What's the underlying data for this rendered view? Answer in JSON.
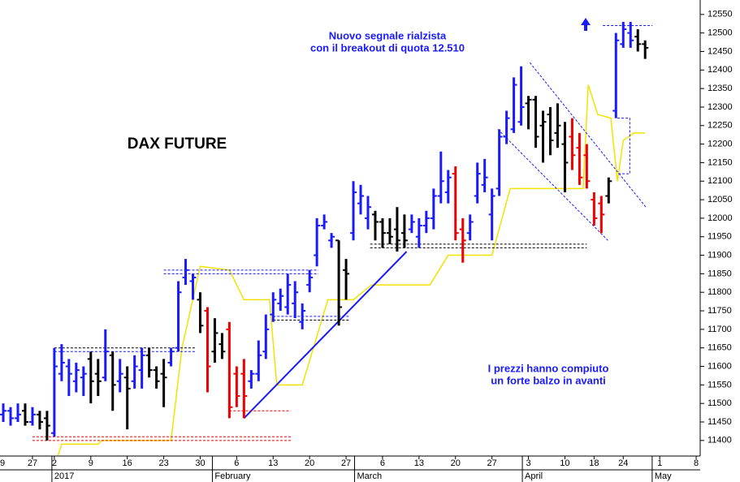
{
  "chart_data": {
    "type": "ohlc",
    "title": "DAX FUTURE",
    "annotations": [
      "Nuovo segnale rialzista",
      "con il breakout di quota 12.510",
      "I prezzi hanno compiuto",
      "un forte balzo in avanti"
    ],
    "xlim": [
      -0.45,
      95.55
    ],
    "ylim": [
      11358,
      12589
    ],
    "yticks": [
      11400,
      11450,
      11500,
      11550,
      11600,
      11650,
      11700,
      11750,
      11800,
      11850,
      11900,
      11950,
      12000,
      12050,
      12100,
      12150,
      12200,
      12250,
      12300,
      12350,
      12400,
      12450,
      12500,
      12550
    ],
    "xticks": [
      {
        "value": -0.5,
        "label": "9"
      },
      {
        "value": 4,
        "label": "27"
      },
      {
        "value": 7,
        "label": "2"
      },
      {
        "value": 12,
        "label": "9"
      },
      {
        "value": 17,
        "label": "16"
      },
      {
        "value": 22,
        "label": "23"
      },
      {
        "value": 27,
        "label": "30"
      },
      {
        "value": 32,
        "label": "6"
      },
      {
        "value": 37,
        "label": "13"
      },
      {
        "value": 42,
        "label": "20"
      },
      {
        "value": 47,
        "label": "27"
      },
      {
        "value": 52,
        "label": "6"
      },
      {
        "value": 57,
        "label": "13"
      },
      {
        "value": 62,
        "label": "20"
      },
      {
        "value": 67,
        "label": "27"
      },
      {
        "value": 72,
        "label": "3"
      },
      {
        "value": 77,
        "label": "10"
      },
      {
        "value": 81,
        "label": "18"
      },
      {
        "value": 85,
        "label": "24"
      },
      {
        "value": 90,
        "label": "1"
      },
      {
        "value": 95,
        "label": "8"
      }
    ],
    "month_labels": [
      {
        "value": 7,
        "label": "2017"
      },
      {
        "value": 29,
        "label": "February"
      },
      {
        "value": 48.5,
        "label": "March"
      },
      {
        "value": 71.5,
        "label": "April"
      },
      {
        "value": 89.3,
        "label": "May"
      }
    ],
    "x": [
      0,
      1,
      2,
      3,
      4,
      5,
      6,
      7,
      8,
      9,
      10,
      11,
      12,
      13,
      14,
      15,
      16,
      17,
      18,
      19,
      20,
      21,
      22,
      23,
      24,
      25,
      26,
      27,
      28,
      29,
      30,
      31,
      32,
      33,
      34,
      35,
      36,
      37,
      38,
      39,
      40,
      41,
      42,
      43,
      44,
      45,
      46,
      47,
      48,
      49,
      50,
      51,
      52,
      53,
      54,
      55,
      56,
      57,
      58,
      59,
      60,
      61,
      62,
      63,
      64,
      65,
      66,
      67,
      68,
      69,
      70,
      71,
      72,
      73,
      74,
      75,
      76,
      77,
      78,
      79,
      80,
      81,
      82,
      83,
      84,
      85,
      86,
      87,
      88
    ],
    "open": [
      11470,
      11480,
      11460,
      11480,
      11450,
      11470,
      11460,
      11420,
      11580,
      11600,
      11560,
      11570,
      11620,
      11580,
      11570,
      11630,
      11560,
      11570,
      11560,
      11590,
      11630,
      11590,
      11580,
      11610,
      11650,
      11840,
      11830,
      11780,
      11750,
      11640,
      11660,
      11700,
      11580,
      11580,
      11560,
      11580,
      11640,
      11740,
      11770,
      11760,
      11770,
      11720,
      11820,
      11900,
      11980,
      11940,
      11940,
      11860,
      11960,
      12040,
      12000,
      12010,
      11990,
      11960,
      11970,
      11960,
      11970,
      11950,
      11980,
      12000,
      12060,
      12070,
      12120,
      11970,
      11960,
      12060,
      12090,
      12010,
      12080,
      12220,
      12240,
      12260,
      12310,
      12320,
      12250,
      12280,
      12230,
      12200,
      12220,
      12190,
      12170,
      12050,
      12040,
      12060,
      12290,
      12470,
      12500,
      12490,
      12470
    ],
    "high": [
      11500,
      11490,
      11500,
      11500,
      11490,
      11480,
      11480,
      11650,
      11660,
      11620,
      11610,
      11600,
      11640,
      11620,
      11700,
      11640,
      11620,
      11600,
      11630,
      11650,
      11650,
      11600,
      11620,
      11650,
      11830,
      11890,
      11850,
      11800,
      11760,
      11730,
      11690,
      11720,
      11600,
      11620,
      11590,
      11670,
      11740,
      11800,
      11810,
      11850,
      11830,
      11770,
      11860,
      12000,
      12010,
      11960,
      11940,
      11890,
      12100,
      12090,
      12060,
      12020,
      12000,
      12000,
      12030,
      12010,
      12010,
      12000,
      12020,
      12080,
      12180,
      12130,
      12140,
      12000,
      12010,
      12150,
      12160,
      12080,
      12240,
      12290,
      12380,
      12410,
      12330,
      12330,
      12290,
      12300,
      12310,
      12260,
      12270,
      12230,
      12200,
      12070,
      12060,
      12110,
      12500,
      12530,
      12530,
      12510,
      12480
    ],
    "low": [
      11450,
      11440,
      11450,
      11440,
      11440,
      11430,
      11400,
      11410,
      11560,
      11520,
      11530,
      11520,
      11500,
      11520,
      11560,
      11480,
      11530,
      11430,
      11540,
      11540,
      11570,
      11540,
      11490,
      11600,
      11640,
      11820,
      11780,
      11690,
      11530,
      11610,
      11620,
      11460,
      11490,
      11460,
      11540,
      11560,
      11620,
      11720,
      11750,
      11740,
      11730,
      11700,
      11800,
      11870,
      11970,
      11920,
      11710,
      11780,
      11940,
      12010,
      11970,
      11940,
      11920,
      11930,
      11910,
      11920,
      11960,
      11920,
      11960,
      11970,
      12040,
      12040,
      11940,
      11880,
      11940,
      12040,
      12070,
      11940,
      12060,
      12200,
      12230,
      12250,
      12240,
      12190,
      12150,
      12170,
      12190,
      12070,
      12130,
      12090,
      12080,
      11980,
      11960,
      12040,
      12270,
      12460,
      12460,
      12450,
      12430
    ],
    "close": [
      11480,
      11460,
      11470,
      11450,
      11470,
      11450,
      11440,
      11600,
      11610,
      11580,
      11590,
      11580,
      11560,
      11560,
      11640,
      11550,
      11580,
      11540,
      11600,
      11630,
      11590,
      11560,
      11570,
      11640,
      11800,
      11860,
      11840,
      11710,
      11600,
      11690,
      11640,
      11490,
      11520,
      11520,
      11580,
      11630,
      11700,
      11780,
      11790,
      11820,
      11800,
      11750,
      11840,
      11980,
      11990,
      11950,
      11760,
      11850,
      12070,
      12060,
      12030,
      11990,
      11960,
      11950,
      11940,
      11940,
      11990,
      11980,
      12000,
      12060,
      12100,
      12110,
      11960,
      11940,
      11990,
      12120,
      12110,
      12060,
      12220,
      12270,
      12360,
      12300,
      12320,
      12220,
      12260,
      12210,
      12250,
      12150,
      12170,
      12110,
      12100,
      12000,
      12010,
      12100,
      12480,
      12510,
      12480,
      12470,
      12460
    ],
    "bar_colors": [
      "#1a1aff",
      "#1a1aff",
      "#1a1aff",
      "#000000",
      "#1a1aff",
      "#000000",
      "#000000",
      "#1a1aff",
      "#1a1aff",
      "#1a1aff",
      "#1a1aff",
      "#1a1aff",
      "#000000",
      "#000000",
      "#1a1aff",
      "#000000",
      "#1a1aff",
      "#000000",
      "#1a1aff",
      "#1a1aff",
      "#000000",
      "#000000",
      "#000000",
      "#1a1aff",
      "#1a1aff",
      "#1a1aff",
      "#1a1aff",
      "#000000",
      "#ee0000",
      "#000000",
      "#000000",
      "#ee0000",
      "#ee0000",
      "#ee0000",
      "#1a1aff",
      "#1a1aff",
      "#1a1aff",
      "#1a1aff",
      "#1a1aff",
      "#1a1aff",
      "#1a1aff",
      "#1a1aff",
      "#1a1aff",
      "#1a1aff",
      "#1a1aff",
      "#1a1aff",
      "#000000",
      "#000000",
      "#1a1aff",
      "#1a1aff",
      "#1a1aff",
      "#000000",
      "#000000",
      "#000000",
      "#000000",
      "#000000",
      "#1a1aff",
      "#1a1aff",
      "#1a1aff",
      "#1a1aff",
      "#1a1aff",
      "#1a1aff",
      "#ee0000",
      "#ee0000",
      "#1a1aff",
      "#1a1aff",
      "#1a1aff",
      "#1a1aff",
      "#1a1aff",
      "#1a1aff",
      "#1a1aff",
      "#1a1aff",
      "#000000",
      "#000000",
      "#000000",
      "#000000",
      "#000000",
      "#000000",
      "#ee0000",
      "#ee0000",
      "#ee0000",
      "#ee0000",
      "#ee0000",
      "#000000",
      "#1a1aff",
      "#1a1aff",
      "#1a1aff",
      "#000000",
      "#000000"
    ],
    "lines": [
      {
        "color": "#f2e200",
        "dashed": false,
        "x": [
          7.5,
          8,
          13,
          13.5,
          23,
          24.5,
          27,
          31,
          33,
          36.5,
          37.5,
          41,
          44.5,
          48,
          50.5,
          58.5,
          61,
          67,
          69.5,
          79.5,
          80.2,
          81.5,
          83.3,
          84.2,
          85,
          86.5,
          88
        ],
        "values": [
          11360,
          11390,
          11390,
          11400,
          11400,
          11650,
          11870,
          11860,
          11780,
          11780,
          11550,
          11550,
          11780,
          11780,
          11820,
          11820,
          11900,
          11900,
          12080,
          12080,
          12360,
          12280,
          12270,
          12100,
          12210,
          12230,
          12230
        ]
      },
      {
        "color": "#1a1aff",
        "dashed": false,
        "x": [
          33,
          55.3
        ],
        "values": [
          11460,
          11910
        ]
      },
      {
        "color": "#ee0000",
        "dashed": true,
        "x": [
          4,
          39.5
        ],
        "values": [
          11410,
          11410
        ]
      },
      {
        "color": "#ee0000",
        "dashed": true,
        "x": [
          4,
          39.5
        ],
        "values": [
          11400,
          11400
        ]
      },
      {
        "color": "#000000",
        "dashed": true,
        "x": [
          7,
          26.5
        ],
        "values": [
          11650,
          11650
        ]
      },
      {
        "color": "#1a1aff",
        "dashed": true,
        "x": [
          7,
          26.5
        ],
        "values": [
          11640,
          11640
        ]
      },
      {
        "color": "#1a1aff",
        "dashed": true,
        "x": [
          22,
          43.2
        ],
        "values": [
          11860,
          11860
        ]
      },
      {
        "color": "#1a1aff",
        "dashed": true,
        "x": [
          22,
          43.2
        ],
        "values": [
          11850,
          11850
        ]
      },
      {
        "color": "#ee0000",
        "dashed": true,
        "x": [
          31,
          39.4
        ],
        "values": [
          11480,
          11480
        ]
      },
      {
        "color": "#1a1aff",
        "dashed": true,
        "x": [
          37,
          47.4
        ],
        "values": [
          11735,
          11735
        ]
      },
      {
        "color": "#000000",
        "dashed": true,
        "x": [
          37,
          47.4
        ],
        "values": [
          11725,
          11725
        ]
      },
      {
        "color": "#000000",
        "dashed": true,
        "x": [
          50.3,
          80
        ],
        "values": [
          11930,
          11930
        ]
      },
      {
        "color": "#000000",
        "dashed": true,
        "x": [
          50.3,
          80
        ],
        "values": [
          11920,
          11920
        ]
      },
      {
        "color": "#1a1aff",
        "dashed": true,
        "x": [
          72.2,
          88.1
        ],
        "values": [
          12420,
          12030
        ]
      },
      {
        "color": "#1a1aff",
        "dashed": true,
        "x": [
          67.8,
          82.9
        ],
        "values": [
          12240,
          11940
        ]
      },
      {
        "color": "#1a1aff",
        "dashed": true,
        "x": [
          84.2,
          85.9,
          85.9,
          84.2
        ],
        "values": [
          12270,
          12270,
          12120,
          12120
        ]
      },
      {
        "color": "#1a1aff",
        "dashed": true,
        "x": [
          82.2,
          89
        ],
        "values": [
          12520,
          12520
        ]
      }
    ]
  }
}
